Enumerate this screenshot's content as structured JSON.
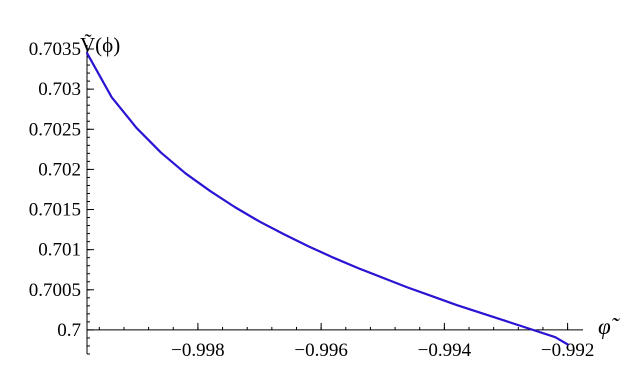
{
  "chart_data": {
    "type": "line",
    "title": "",
    "xlabel": "φ̃",
    "ylabel": "Ṽ(ϕ)",
    "xlim": [
      -0.9998,
      -0.99175
    ],
    "ylim": [
      0.6997,
      0.70355
    ],
    "x_axis_crossing_y": 0.7,
    "x_ticks": [
      {
        "value": -0.998,
        "label": "−0.998"
      },
      {
        "value": -0.996,
        "label": "−0.996"
      },
      {
        "value": -0.994,
        "label": "−0.994"
      },
      {
        "value": -0.992,
        "label": "−0.992"
      }
    ],
    "x_minor_step": 0.0004,
    "y_ticks": [
      {
        "value": 0.7,
        "label": "0.7"
      },
      {
        "value": 0.7005,
        "label": "0.7005"
      },
      {
        "value": 0.701,
        "label": "0.701"
      },
      {
        "value": 0.7015,
        "label": "0.7015"
      },
      {
        "value": 0.702,
        "label": "0.702"
      },
      {
        "value": 0.7025,
        "label": "0.7025"
      },
      {
        "value": 0.703,
        "label": "0.703"
      },
      {
        "value": 0.7035,
        "label": "0.7035"
      }
    ],
    "y_minor_step": 0.0001,
    "grid": false,
    "series": [
      {
        "color": "#2a14d4",
        "x": [
          -0.9998,
          -0.9994,
          -0.999,
          -0.9986,
          -0.9982,
          -0.9978,
          -0.9974,
          -0.997,
          -0.9966,
          -0.9962,
          -0.9958,
          -0.9954,
          -0.995,
          -0.9946,
          -0.9942,
          -0.9938,
          -0.9934,
          -0.993,
          -0.9926,
          -0.9922,
          -0.992
        ],
        "y": [
          0.70345,
          0.7029,
          0.70252,
          0.70221,
          0.70195,
          0.70173,
          0.70153,
          0.70135,
          0.70119,
          0.70104,
          0.7009,
          0.70077,
          0.70065,
          0.70053,
          0.70042,
          0.70031,
          0.70021,
          0.70011,
          0.70001,
          0.69991,
          0.69982
        ]
      }
    ]
  }
}
